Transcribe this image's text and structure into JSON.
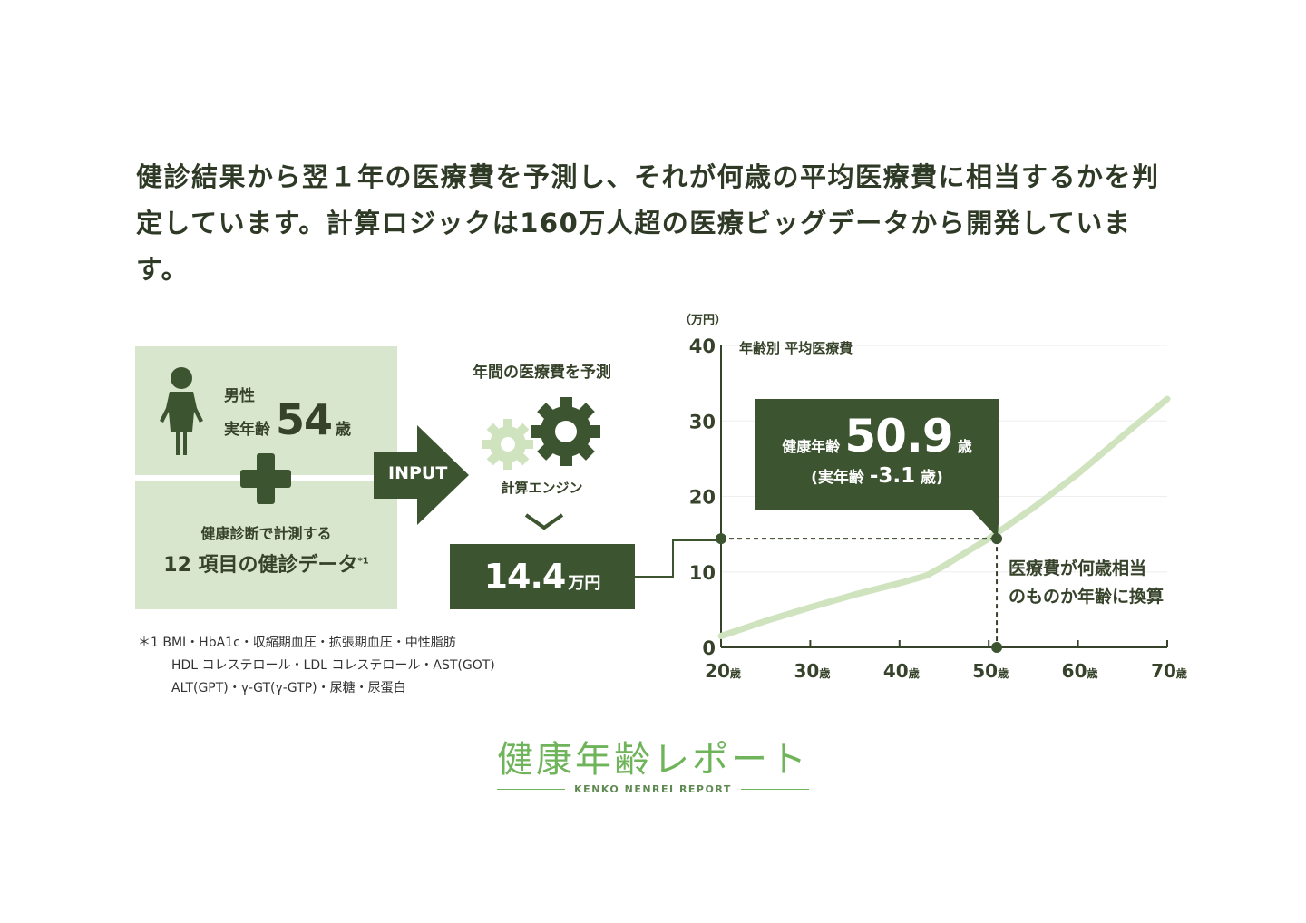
{
  "intro_text": "健診結果から翌１年の医療費を予測し、それが何歳の平均医療費に相当するかを判定しています。計算ロジックは160万人超の医療ビッグデータから開発しています。",
  "input": {
    "gender": "男性",
    "age_label": "実年齢",
    "age_value": "54",
    "age_unit": "歳",
    "checkup_label": "健康診断で計測する",
    "data_label": "12 項目の健診データ",
    "data_mark": "*1"
  },
  "arrow_label": "INPUT",
  "engine": {
    "title": "年間の医療費を予測",
    "label": "計算エンジン"
  },
  "result": {
    "value": "14.4",
    "unit": "万円"
  },
  "footnote": {
    "mark": "＊1",
    "lines": [
      "BMI・HbA1c・収縮期血圧・拡張期血圧・中性脂肪",
      "HDL コレステロール・LDL コレステロール・AST(GOT)",
      "ALT(GPT)・γ-GT(γ-GTP)・尿糖・尿蛋白"
    ]
  },
  "callout": {
    "label": "健康年齢",
    "value": "50.9",
    "unit": "歳",
    "diff_prefix": "(実年齢 ",
    "diff_value": "-3.1",
    "diff_suffix": " 歳)"
  },
  "convert_text": [
    "医療費が何歳相当",
    "のものか年齢に換算"
  ],
  "logo": {
    "title": "健康年齢レポート",
    "subtitle": "KENKO NENREI REPORT"
  },
  "colors": {
    "dark_green": "#3d5431",
    "light_green": "#d7e6cd",
    "curve": "#cfe3bf",
    "logo": "#6fb45a"
  },
  "chart_data": {
    "type": "line",
    "title": "年齢別 平均医療費",
    "ylabel": "（万円）",
    "xlabel": "",
    "x_unit": "歳",
    "ylim": [
      0,
      40
    ],
    "xlim": [
      20,
      70
    ],
    "yticks": [
      "0",
      "10",
      "20",
      "30",
      "40"
    ],
    "xticks": [
      "20",
      "30",
      "40",
      "50",
      "60",
      "70"
    ],
    "series": [
      {
        "x": [
          20,
          25,
          30,
          35,
          40,
          43,
          45,
          48,
          50,
          55,
          60,
          65,
          70
        ],
        "values": [
          1.5,
          3.5,
          5.3,
          7.0,
          8.5,
          9.5,
          10.8,
          13.0,
          14.4,
          18.5,
          23.0,
          28.0,
          32.9
        ]
      }
    ],
    "highlight": {
      "x": 50.9,
      "y": 14.4
    }
  }
}
